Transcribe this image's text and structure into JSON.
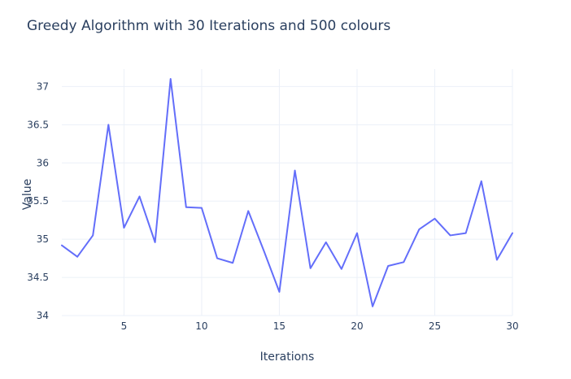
{
  "chart_data": {
    "type": "line",
    "title": "Greedy Algorithm with 30 Iterations and 500 colours",
    "xlabel": "Iterations",
    "ylabel": "Value",
    "xlim": [
      1,
      30
    ],
    "ylim": [
      34,
      37.1
    ],
    "xticks": [
      5,
      10,
      15,
      20,
      25,
      30
    ],
    "xtick_labels": [
      "5",
      "10",
      "15",
      "20",
      "25",
      "30"
    ],
    "yticks": [
      34,
      34.5,
      35,
      35.5,
      36,
      36.5,
      37
    ],
    "ytick_labels": [
      "34",
      "34.5",
      "35",
      "35.5",
      "36",
      "36.5",
      "37"
    ],
    "grid": true,
    "line_color": "#636efa",
    "series": [
      {
        "x": [
          1,
          2,
          3,
          4,
          5,
          6,
          7,
          8,
          9,
          10,
          11,
          12,
          13,
          14,
          15,
          16,
          17,
          18,
          19,
          20,
          21,
          22,
          23,
          24,
          25,
          26,
          27,
          28,
          29,
          30
        ],
        "values": [
          34.92,
          34.77,
          35.05,
          36.5,
          35.15,
          35.56,
          34.96,
          37.1,
          35.42,
          35.41,
          34.75,
          34.69,
          35.37,
          34.85,
          34.31,
          35.9,
          34.62,
          34.96,
          34.61,
          35.08,
          34.12,
          34.65,
          34.7,
          35.13,
          35.27,
          35.05,
          35.08,
          35.76,
          34.73,
          35.08
        ]
      }
    ]
  }
}
